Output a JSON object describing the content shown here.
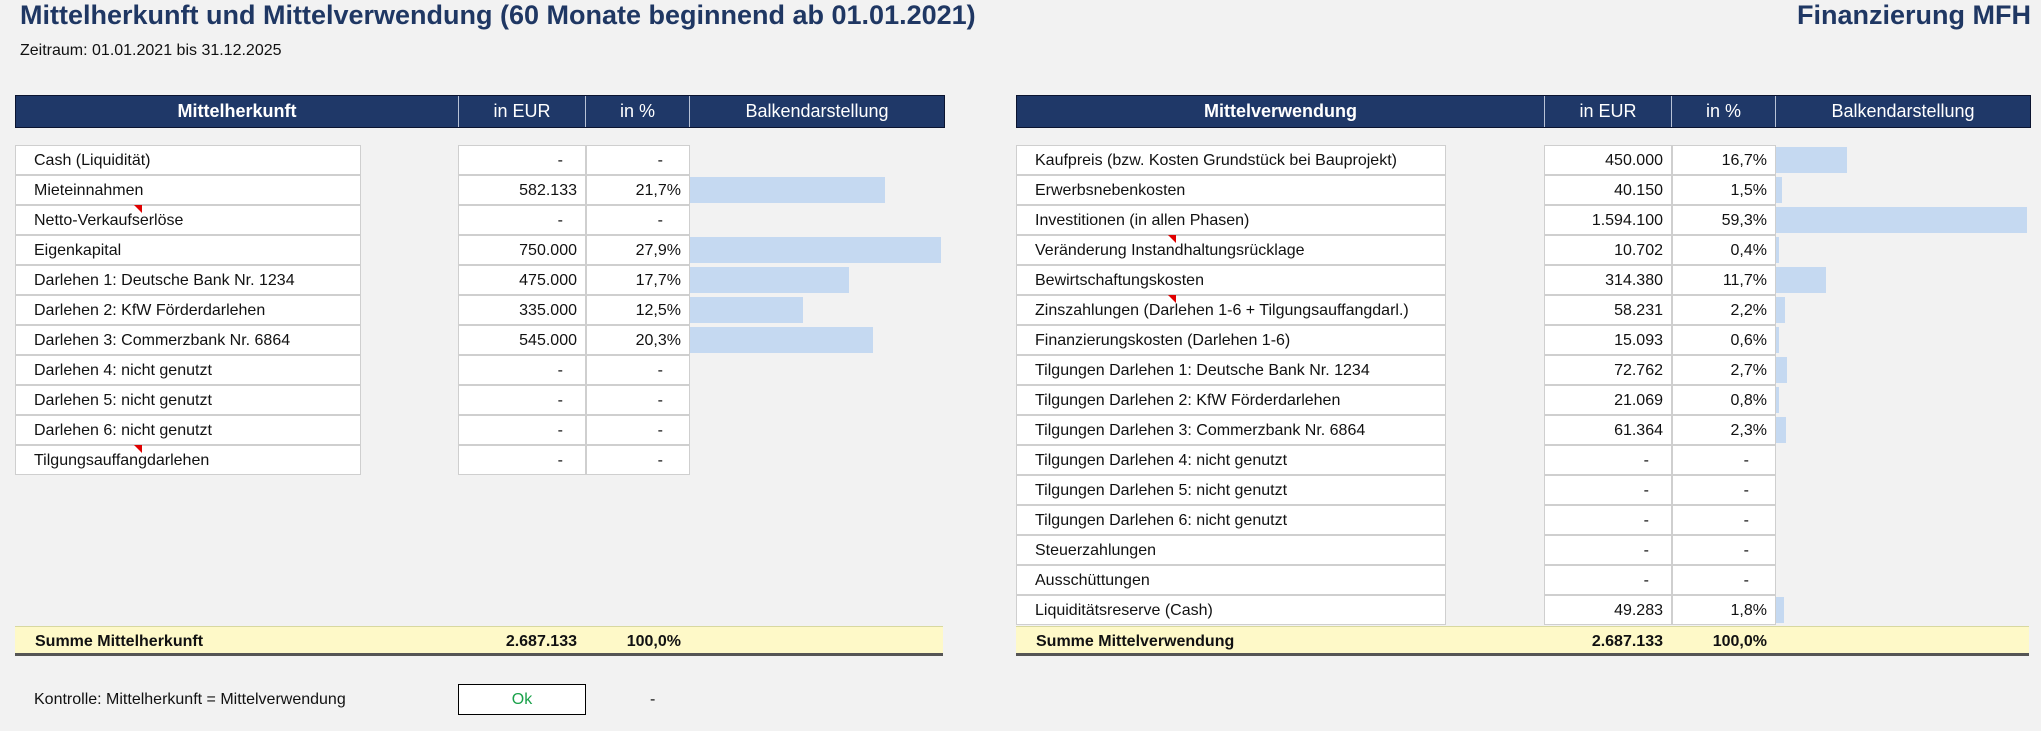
{
  "page": {
    "title": "Mittelherkunft und Mittelverwendung (60 Monate beginnend ab 01.01.2021)",
    "brand": "Finanzierung MFH",
    "zeitraum": "Zeitraum: 01.01.2021 bis 31.12.2025"
  },
  "left": {
    "headers": {
      "label": "Mittelherkunft",
      "eur": "in EUR",
      "pct": "in %",
      "bar": "Balkendarstellung"
    },
    "rows": [
      {
        "label": "Cash (Liquidität)",
        "eur": "-",
        "pct": "-",
        "share": 0
      },
      {
        "label": "Mieteinnahmen",
        "eur": "582.133",
        "pct": "21,7%",
        "share": 21.7
      },
      {
        "label": "Netto-Verkaufserlöse",
        "eur": "-",
        "pct": "-",
        "share": 0
      },
      {
        "label": "Eigenkapital",
        "eur": "750.000",
        "pct": "27,9%",
        "share": 27.9
      },
      {
        "label": "Darlehen 1: Deutsche Bank Nr. 1234",
        "eur": "475.000",
        "pct": "17,7%",
        "share": 17.7
      },
      {
        "label": "Darlehen 2: KfW Förderdarlehen",
        "eur": "335.000",
        "pct": "12,5%",
        "share": 12.5
      },
      {
        "label": "Darlehen 3: Commerzbank Nr. 6864",
        "eur": "545.000",
        "pct": "20,3%",
        "share": 20.3
      },
      {
        "label": "Darlehen 4: nicht genutzt",
        "eur": "-",
        "pct": "-",
        "share": 0
      },
      {
        "label": "Darlehen 5: nicht genutzt",
        "eur": "-",
        "pct": "-",
        "share": 0
      },
      {
        "label": "Darlehen 6: nicht genutzt",
        "eur": "-",
        "pct": "-",
        "share": 0
      },
      {
        "label": "Tilgungsauffangdarlehen",
        "eur": "-",
        "pct": "-",
        "share": 0
      }
    ],
    "sum": {
      "label": "Summe Mittelherkunft",
      "eur": "2.687.133",
      "pct": "100,0%"
    }
  },
  "right": {
    "headers": {
      "label": "Mittelverwendung",
      "eur": "in EUR",
      "pct": "in %",
      "bar": "Balkendarstellung"
    },
    "rows": [
      {
        "label": "Kaufpreis (bzw. Kosten Grundstück bei Bauprojekt)",
        "eur": "450.000",
        "pct": "16,7%",
        "share": 16.7
      },
      {
        "label": "Erwerbsnebenkosten",
        "eur": "40.150",
        "pct": "1,5%",
        "share": 1.5
      },
      {
        "label": "Investitionen (in allen Phasen)",
        "eur": "1.594.100",
        "pct": "59,3%",
        "share": 59.3
      },
      {
        "label": "Veränderung Instandhaltungsrücklage",
        "eur": "10.702",
        "pct": "0,4%",
        "share": 0.4
      },
      {
        "label": "Bewirtschaftungskosten",
        "eur": "314.380",
        "pct": "11,7%",
        "share": 11.7
      },
      {
        "label": "Zinszahlungen (Darlehen 1-6 + Tilgungsauffangdarl.)",
        "eur": "58.231",
        "pct": "2,2%",
        "share": 2.2
      },
      {
        "label": "Finanzierungskosten (Darlehen 1-6)",
        "eur": "15.093",
        "pct": "0,6%",
        "share": 0.6
      },
      {
        "label": "Tilgungen Darlehen 1: Deutsche Bank Nr. 1234",
        "eur": "72.762",
        "pct": "2,7%",
        "share": 2.7
      },
      {
        "label": "Tilgungen Darlehen 2: KfW Förderdarlehen",
        "eur": "21.069",
        "pct": "0,8%",
        "share": 0.8
      },
      {
        "label": "Tilgungen Darlehen 3: Commerzbank Nr. 6864",
        "eur": "61.364",
        "pct": "2,3%",
        "share": 2.3
      },
      {
        "label": "Tilgungen Darlehen 4: nicht genutzt",
        "eur": "-",
        "pct": "-",
        "share": 0
      },
      {
        "label": "Tilgungen Darlehen 5: nicht genutzt",
        "eur": "-",
        "pct": "-",
        "share": 0
      },
      {
        "label": "Tilgungen Darlehen 6: nicht genutzt",
        "eur": "-",
        "pct": "-",
        "share": 0
      },
      {
        "label": "Steuerzahlungen",
        "eur": "-",
        "pct": "-",
        "share": 0
      },
      {
        "label": "Ausschüttungen",
        "eur": "-",
        "pct": "-",
        "share": 0
      },
      {
        "label": "Liquiditätsreserve (Cash)",
        "eur": "49.283",
        "pct": "1,8%",
        "share": 1.8
      }
    ],
    "sum": {
      "label": "Summe Mittelverwendung",
      "eur": "2.687.133",
      "pct": "100,0%"
    }
  },
  "kontrolle": {
    "label": "Kontrolle: Mittelherkunft = Mittelverwendung",
    "status": "Ok",
    "value": "-"
  },
  "colors": {
    "header_bg": "#1f3868",
    "bar": "#c5d9f1",
    "sum_bg": "#fef9c8",
    "ok": "#1aa14a",
    "comment_marker": "#e00000"
  }
}
